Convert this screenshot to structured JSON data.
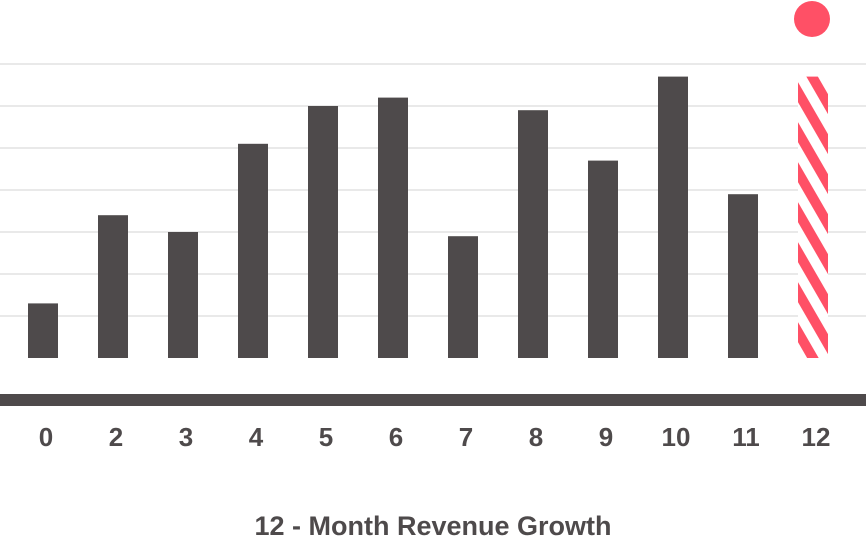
{
  "chart_data": {
    "type": "bar",
    "title": "12 - Month Revenue Growth",
    "xlabel": "",
    "ylabel": "",
    "categories": [
      "0",
      "2",
      "3",
      "4",
      "5",
      "6",
      "7",
      "8",
      "9",
      "10",
      "11",
      "12"
    ],
    "values": [
      1.3,
      3.4,
      3.0,
      5.1,
      6.0,
      6.2,
      2.9,
      5.9,
      4.7,
      6.7,
      3.9,
      6.7
    ],
    "projected_index": 11,
    "ylim": [
      0,
      7
    ],
    "grid": true,
    "colors": {
      "bar": "#4e4a4b",
      "projected": "#ff5066",
      "marker": "#ff5066",
      "grid": "#e2e2e2",
      "axis": "#4e4a4b",
      "text": "#4e4a4b"
    }
  }
}
